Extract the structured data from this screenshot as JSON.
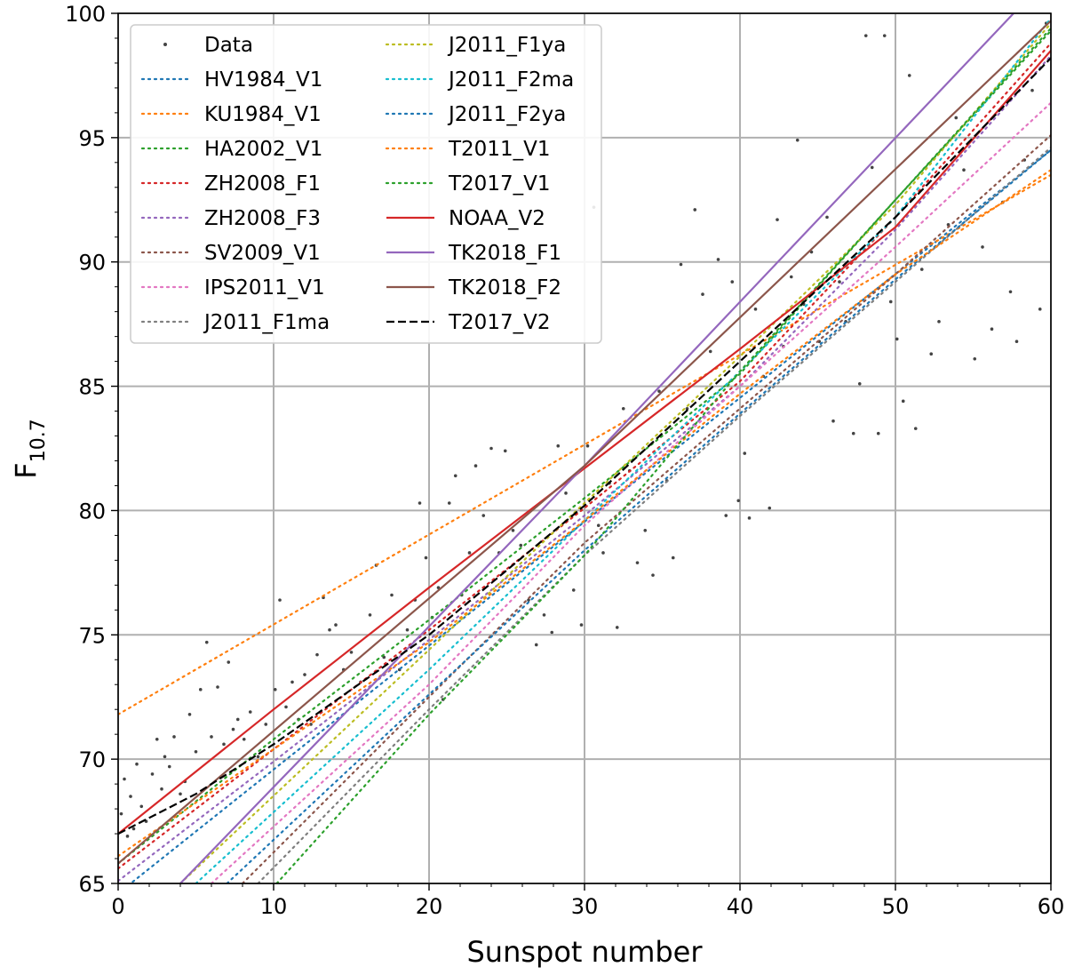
{
  "chart_data": {
    "type": "scatter",
    "xlabel": "Sunspot number",
    "ylabel_main": "F",
    "ylabel_sub": "10.7",
    "xlim": [
      0,
      60
    ],
    "ylim": [
      65,
      100
    ],
    "xticks": [
      0,
      10,
      20,
      30,
      40,
      50,
      60
    ],
    "yticks": [
      65,
      70,
      75,
      80,
      85,
      90,
      95,
      100
    ],
    "grid": true,
    "legend_position": "top-left",
    "series": [
      {
        "name": "Data",
        "kind": "points",
        "color": "#444444",
        "points": [
          [
            0.2,
            67.8
          ],
          [
            0.4,
            69.2
          ],
          [
            0.6,
            66.9
          ],
          [
            0.8,
            68.5
          ],
          [
            1,
            67.2
          ],
          [
            1.2,
            69.8
          ],
          [
            1.5,
            68.1
          ],
          [
            1.8,
            67.5
          ],
          [
            2.2,
            69.4
          ],
          [
            2.5,
            70.8
          ],
          [
            2.8,
            68.8
          ],
          [
            3,
            70.1
          ],
          [
            3.3,
            69.7
          ],
          [
            3.6,
            70.9
          ],
          [
            4,
            68.6
          ],
          [
            4.3,
            69.1
          ],
          [
            4.6,
            71.8
          ],
          [
            5,
            70.3
          ],
          [
            5.3,
            72.8
          ],
          [
            5.7,
            74.7
          ],
          [
            6,
            70.9
          ],
          [
            6.4,
            72.9
          ],
          [
            6.8,
            70.6
          ],
          [
            7.1,
            73.9
          ],
          [
            7.4,
            71.2
          ],
          [
            7.7,
            71.6
          ],
          [
            8.1,
            70.8
          ],
          [
            8.5,
            71.9
          ],
          [
            9,
            70.1
          ],
          [
            9.5,
            71.4
          ],
          [
            10.1,
            72.8
          ],
          [
            10.4,
            76.4
          ],
          [
            10.8,
            72.1
          ],
          [
            11.2,
            73.1
          ],
          [
            11.6,
            71.6
          ],
          [
            12,
            73.4
          ],
          [
            12.4,
            71.4
          ],
          [
            12.8,
            74.2
          ],
          [
            13.2,
            76.5
          ],
          [
            13.6,
            75.2
          ],
          [
            14,
            75.4
          ],
          [
            14.5,
            73.6
          ],
          [
            15,
            74.3
          ],
          [
            15.6,
            73.1
          ],
          [
            16.2,
            75.8
          ],
          [
            16.6,
            77.8
          ],
          [
            17.1,
            74.1
          ],
          [
            17.6,
            76.6
          ],
          [
            18.1,
            73.6
          ],
          [
            18.6,
            75.2
          ],
          [
            19.1,
            76.4
          ],
          [
            19.4,
            80.3
          ],
          [
            19.8,
            78.1
          ],
          [
            20.2,
            75.7
          ],
          [
            20.6,
            76.9
          ],
          [
            20.9,
            72.4
          ],
          [
            21.3,
            80.3
          ],
          [
            21.7,
            81.4
          ],
          [
            22.1,
            76.6
          ],
          [
            22.6,
            78.3
          ],
          [
            23,
            81.8
          ],
          [
            23.5,
            79.8
          ],
          [
            24,
            82.5
          ],
          [
            24.5,
            78.3
          ],
          [
            24.9,
            82.4
          ],
          [
            25.4,
            79.2
          ],
          [
            25.9,
            78.6
          ],
          [
            26.4,
            76.4
          ],
          [
            26.9,
            74.6
          ],
          [
            27.4,
            75.8
          ],
          [
            27.9,
            75.1
          ],
          [
            28.3,
            82.6
          ],
          [
            28.8,
            80.7
          ],
          [
            29.3,
            76.8
          ],
          [
            29.8,
            75.4
          ],
          [
            30.2,
            82.6
          ],
          [
            30.6,
            92.2
          ],
          [
            30.9,
            79.4
          ],
          [
            31.2,
            78.3
          ],
          [
            31.6,
            81.1
          ],
          [
            32.1,
            75.3
          ],
          [
            32.5,
            84.1
          ],
          [
            32.9,
            81.6
          ],
          [
            33.4,
            77.9
          ],
          [
            33.9,
            79.2
          ],
          [
            34.4,
            77.4
          ],
          [
            34.8,
            84.8
          ],
          [
            35.3,
            81.2
          ],
          [
            35.7,
            78.1
          ],
          [
            36.2,
            89.9
          ],
          [
            36.6,
            84.1
          ],
          [
            37.1,
            92.1
          ],
          [
            37.6,
            88.7
          ],
          [
            38.1,
            86.4
          ],
          [
            38.6,
            90.1
          ],
          [
            39.1,
            79.8
          ],
          [
            39.5,
            89.2
          ],
          [
            39.9,
            80.4
          ],
          [
            40.3,
            82.3
          ],
          [
            40.6,
            79.7
          ],
          [
            41,
            88.1
          ],
          [
            41.5,
            85.4
          ],
          [
            41.9,
            80.1
          ],
          [
            42.4,
            91.7
          ],
          [
            42.8,
            86.6
          ],
          [
            43.3,
            89.4
          ],
          [
            43.7,
            94.9
          ],
          [
            44.1,
            88.3
          ],
          [
            44.6,
            90.4
          ],
          [
            45.1,
            86.8
          ],
          [
            45.6,
            91.8
          ],
          [
            46,
            83.6
          ],
          [
            46.4,
            89.2
          ],
          [
            46.8,
            87.6
          ],
          [
            47.3,
            83.1
          ],
          [
            47.7,
            85.1
          ],
          [
            48.1,
            99.1
          ],
          [
            48.5,
            93.8
          ],
          [
            48.9,
            83.1
          ],
          [
            49.3,
            99.1
          ],
          [
            49.7,
            88.4
          ],
          [
            50.1,
            86.9
          ],
          [
            50.5,
            84.4
          ],
          [
            50.9,
            97.5
          ],
          [
            51.3,
            83.3
          ],
          [
            51.7,
            89.7
          ],
          [
            52.3,
            86.3
          ],
          [
            52.8,
            87.6
          ],
          [
            53.4,
            91.5
          ],
          [
            53.9,
            95.8
          ],
          [
            54.4,
            93.7
          ],
          [
            55.1,
            86.1
          ],
          [
            55.6,
            90.6
          ],
          [
            56.2,
            87.3
          ],
          [
            56.9,
            92.4
          ],
          [
            57.4,
            88.8
          ],
          [
            57.8,
            86.8
          ],
          [
            58.3,
            94.1
          ],
          [
            58.8,
            96.9
          ],
          [
            59.3,
            88.1
          ],
          [
            59.7,
            99.6
          ]
        ]
      },
      {
        "name": "HV1984_V1",
        "kind": "dotted",
        "color": "#1f77b4",
        "x": [
          0,
          60
        ],
        "y": [
          64.6,
          94.5
        ]
      },
      {
        "name": "KU1984_V1",
        "kind": "dotted",
        "color": "#ff7f0e",
        "x": [
          0,
          60
        ],
        "y": [
          71.8,
          93.5
        ]
      },
      {
        "name": "HA2002_V1",
        "kind": "dotted",
        "color": "#2ca02c",
        "x": [
          0,
          10,
          20,
          30,
          40,
          50,
          60
        ],
        "y": [
          65.8,
          70.8,
          75.6,
          80.5,
          85.5,
          92.5,
          99.3
        ]
      },
      {
        "name": "ZH2008_F1",
        "kind": "dotted",
        "color": "#d62728",
        "x": [
          0,
          10,
          20,
          30,
          40,
          50,
          60
        ],
        "y": [
          65.6,
          70.4,
          75.2,
          80.1,
          85.2,
          91.8,
          98.8
        ]
      },
      {
        "name": "ZH2008_F3",
        "kind": "dotted",
        "color": "#9467bd",
        "x": [
          0,
          10,
          20,
          30,
          40,
          50,
          60
        ],
        "y": [
          65.1,
          69.9,
          74.8,
          79.8,
          85.0,
          91.3,
          98.3
        ]
      },
      {
        "name": "SV2009_V1",
        "kind": "dotted",
        "color": "#8c564b",
        "x": [
          8,
          20,
          30,
          40,
          50,
          60
        ],
        "y": [
          65.0,
          72.5,
          78.7,
          84.1,
          89.5,
          95.1
        ]
      },
      {
        "name": "IPS2011_V1",
        "kind": "dotted",
        "color": "#e377c2",
        "x": [
          6,
          20,
          30,
          40,
          50,
          60
        ],
        "y": [
          65.0,
          73.0,
          79.4,
          85.0,
          90.6,
          96.4
        ]
      },
      {
        "name": "J2011_F1ma",
        "kind": "dotted",
        "color": "#7f7f7f",
        "x": [
          9,
          20,
          30,
          40,
          50,
          60
        ],
        "y": [
          65.0,
          72.0,
          78.2,
          83.8,
          89.2,
          94.6
        ]
      },
      {
        "name": "J2011_F1ya",
        "kind": "dotted",
        "color": "#bcbd22",
        "x": [
          4,
          20,
          30,
          40,
          50,
          60
        ],
        "y": [
          65.0,
          74.4,
          80.3,
          86.2,
          92.3,
          99.6
        ]
      },
      {
        "name": "J2011_F2ma",
        "kind": "dotted",
        "color": "#17becf",
        "x": [
          5,
          20,
          30,
          40,
          50,
          60
        ],
        "y": [
          65.0,
          73.6,
          79.6,
          85.6,
          91.8,
          99.8
        ]
      },
      {
        "name": "J2011_F2ya",
        "kind": "dotted",
        "color": "#1f77b4",
        "x": [
          7,
          20,
          30,
          40,
          50,
          60
        ],
        "y": [
          65.0,
          72.6,
          78.4,
          83.9,
          89.3,
          94.5
        ]
      },
      {
        "name": "T2011_V1",
        "kind": "dotted",
        "color": "#ff7f0e",
        "x": [
          0,
          20,
          30,
          40,
          50,
          60
        ],
        "y": [
          66.1,
          74.7,
          79.6,
          84.7,
          89.5,
          93.7
        ]
      },
      {
        "name": "T2017_V1",
        "kind": "dotted",
        "color": "#2ca02c",
        "x": [
          10.2,
          20,
          30,
          40,
          50,
          60
        ],
        "y": [
          65.0,
          71.8,
          78.2,
          85.6,
          92.5,
          99.4
        ]
      },
      {
        "name": "NOAA_V2",
        "kind": "solid",
        "color": "#d62728",
        "x": [
          0,
          10,
          20,
          30,
          40,
          50,
          60
        ],
        "y": [
          67.0,
          72.0,
          76.9,
          81.7,
          86.5,
          91.4,
          98.5
        ]
      },
      {
        "name": "TK2018_F1",
        "kind": "solid",
        "color": "#9467bd",
        "x": [
          4,
          30,
          57.6
        ],
        "y": [
          65.0,
          81.8,
          100.0
        ]
      },
      {
        "name": "TK2018_F2",
        "kind": "solid",
        "color": "#8c564b",
        "x": [
          0,
          30,
          60
        ],
        "y": [
          65.8,
          81.8,
          99.7
        ]
      },
      {
        "name": "T2017_V2",
        "kind": "dashed",
        "color": "#000000",
        "x": [
          0,
          5,
          10,
          20,
          30,
          40,
          50,
          60
        ],
        "y": [
          67.0,
          68.6,
          70.6,
          75.0,
          80.2,
          86.0,
          91.8,
          98.2
        ]
      }
    ]
  }
}
